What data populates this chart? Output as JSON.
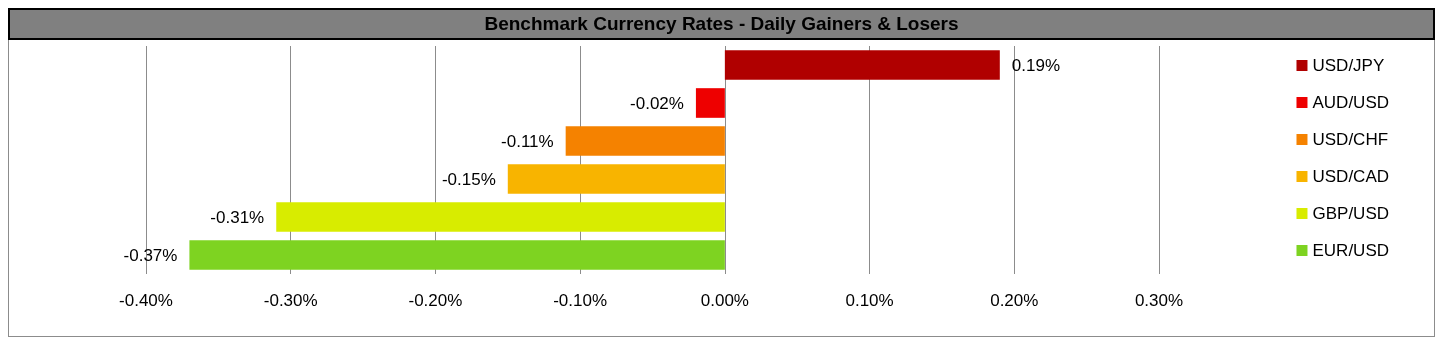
{
  "chart_data": {
    "type": "bar",
    "orientation": "horizontal",
    "stacked": true,
    "title": "Benchmark Currency Rates - Daily Gainers & Losers",
    "categories": [
      null,
      null,
      null,
      null,
      null,
      null
    ],
    "series": [
      {
        "name": "USD/JPY",
        "color": "#b00000",
        "values": [
          0.19,
          null,
          null,
          null,
          null,
          null
        ],
        "value_labels": [
          "0.19%",
          null,
          null,
          null,
          null,
          null
        ]
      },
      {
        "name": "AUD/USD",
        "color": "#ee0000",
        "values": [
          null,
          -0.02,
          null,
          null,
          null,
          null
        ],
        "value_labels": [
          null,
          "-0.02%",
          null,
          null,
          null,
          null
        ]
      },
      {
        "name": "USD/CHF",
        "color": "#f58200",
        "values": [
          null,
          null,
          -0.11,
          null,
          null,
          null
        ],
        "value_labels": [
          null,
          null,
          "-0.11%",
          null,
          null,
          null
        ]
      },
      {
        "name": "USD/CAD",
        "color": "#f8b400",
        "values": [
          null,
          null,
          null,
          -0.15,
          null,
          null
        ],
        "value_labels": [
          null,
          null,
          null,
          "-0.15%",
          null,
          null
        ]
      },
      {
        "name": "GBP/USD",
        "color": "#d8ec00",
        "values": [
          null,
          null,
          null,
          null,
          -0.31,
          null
        ],
        "value_labels": [
          null,
          null,
          null,
          null,
          "-0.31%",
          null
        ]
      },
      {
        "name": "EUR/USD",
        "color": "#7ed321",
        "values": [
          null,
          null,
          null,
          null,
          null,
          -0.37
        ],
        "value_labels": [
          null,
          null,
          null,
          null,
          null,
          "-0.37%"
        ]
      }
    ],
    "xlim": [
      -0.4,
      0.3
    ],
    "xticks": [
      {
        "value": -0.4,
        "label": "-0.40%"
      },
      {
        "value": -0.3,
        "label": "-0.30%"
      },
      {
        "value": -0.2,
        "label": "-0.20%"
      },
      {
        "value": -0.1,
        "label": "-0.10%"
      },
      {
        "value": 0,
        "label": "0.00%"
      },
      {
        "value": 0.1,
        "label": "0.10%"
      },
      {
        "value": 0.2,
        "label": "0.20%"
      },
      {
        "value": 0.3,
        "label": "0.30%"
      }
    ],
    "grid": "x",
    "legend": "right",
    "tick_labels": "x"
  }
}
